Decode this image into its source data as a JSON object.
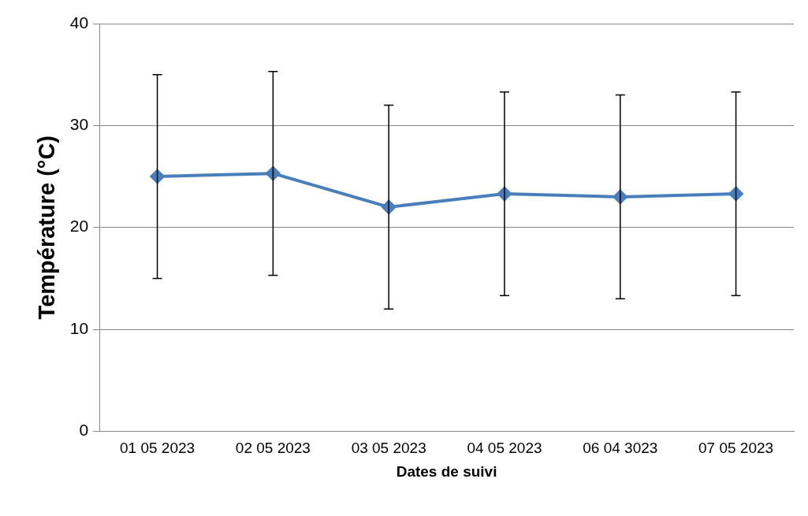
{
  "chart_data": {
    "type": "line",
    "xlabel": "Dates de suivi",
    "ylabel": "Température (°C)",
    "categories": [
      "01 05 2023",
      "02 05 2023",
      "03 05 2023",
      "04 05 2023",
      "06 04 3023",
      "07 05 2023"
    ],
    "series": [
      {
        "color": "#4a7ebb",
        "values": [
          25,
          25.3,
          22,
          23.3,
          23,
          23.3
        ],
        "errors": [
          10,
          10,
          10,
          10,
          10,
          10
        ]
      }
    ],
    "ylim": [
      0,
      40
    ],
    "yticks": [
      0,
      10,
      20,
      30,
      40
    ],
    "grid": "y",
    "marker": "diamond",
    "line_style": "solid",
    "legend": false
  }
}
